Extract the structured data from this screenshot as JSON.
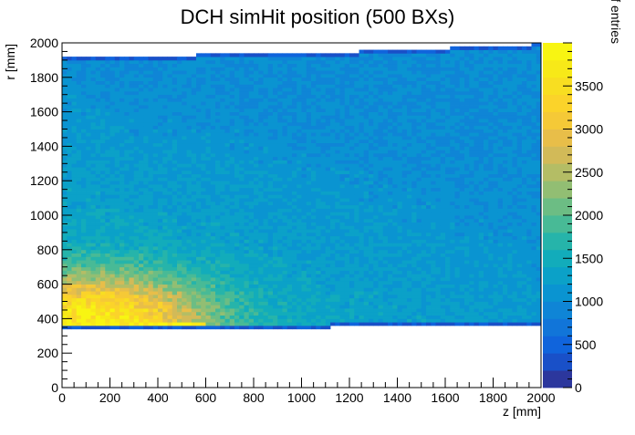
{
  "chart_data": {
    "type": "heatmap",
    "title": "DCH simHit position (500 BXs)",
    "xlabel": "z [mm]",
    "ylabel": "r [mm]",
    "zlabel": "Number of entries",
    "xlim": [
      0,
      2000
    ],
    "ylim": [
      0,
      2000
    ],
    "zlim": [
      0,
      4000
    ],
    "x_ticks": [
      "0",
      "200",
      "400",
      "600",
      "800",
      "1000",
      "1200",
      "1400",
      "1600",
      "1800",
      "2000"
    ],
    "y_ticks": [
      "0",
      "200",
      "400",
      "600",
      "800",
      "1000",
      "1200",
      "1400",
      "1600",
      "1800",
      "2000"
    ],
    "z_ticks": [
      "0",
      "500",
      "1000",
      "1500",
      "2000",
      "2500",
      "3000",
      "3500"
    ],
    "x_bin_width": 20,
    "y_bin_width": 20,
    "colormap": "parula",
    "regions": [
      {
        "z_range": [
          0,
          560
        ],
        "r_range": [
          340,
          1920
        ]
      },
      {
        "z_range": [
          560,
          1120
        ],
        "r_range": [
          340,
          1930
        ]
      },
      {
        "z_range": [
          1120,
          1240
        ],
        "r_range": [
          360,
          1940
        ]
      },
      {
        "z_range": [
          1240,
          1620
        ],
        "r_range": [
          360,
          1955
        ]
      },
      {
        "z_range": [
          1620,
          1960
        ],
        "r_range": [
          360,
          1975
        ]
      },
      {
        "z_range": [
          1960,
          2000
        ],
        "r_range": [
          360,
          2000
        ]
      }
    ],
    "density_profile": {
      "peak": {
        "z": 150,
        "r": 400,
        "entries": 3900
      },
      "inner_edge_r": 360,
      "outer_r": 1900,
      "typical_outer_entries": 1000,
      "typical_mid_entries": 1700,
      "typical_inner_entries": 3000
    }
  }
}
